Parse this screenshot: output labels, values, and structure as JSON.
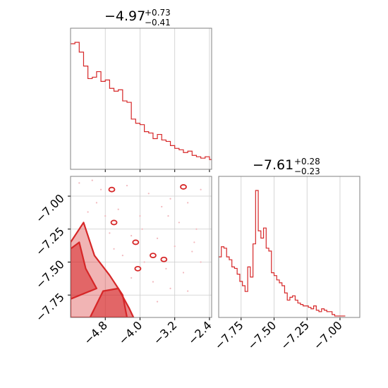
{
  "chart_data": [
    {
      "type": "histogram",
      "panel": "marginal-param-1",
      "title": {
        "value": "−4.97",
        "upper": "+0.73",
        "lower": "−0.41"
      },
      "xlim": [
        -5.6,
        -2.35
      ],
      "grid": true,
      "color": "#d62728",
      "bin_edges_start": -5.6,
      "bin_width": 0.1,
      "values": [
        90,
        91,
        84,
        74,
        65,
        66,
        70,
        63,
        64,
        58,
        56,
        57,
        49,
        48,
        36,
        33,
        32,
        27,
        26,
        22,
        25,
        21,
        20,
        17,
        15,
        14,
        12,
        13,
        10,
        9,
        8,
        9,
        7,
        6,
        7,
        5,
        5,
        6,
        4,
        5,
        3,
        4,
        3,
        3,
        2,
        3,
        2,
        2,
        1,
        2,
        1,
        2
      ]
    },
    {
      "type": "histogram",
      "panel": "marginal-param-2",
      "title": {
        "value": "−7.61",
        "upper": "+0.28",
        "lower": "−0.23"
      },
      "xlim": [
        -7.92,
        -6.85
      ],
      "xticks": [
        "−7.75",
        "−7.50",
        "−7.25",
        "−7.00"
      ],
      "grid": true,
      "color": "#d62728",
      "bin_edges_start": -7.92,
      "bin_width": 0.02,
      "values": [
        42,
        49,
        48,
        42,
        40,
        35,
        34,
        30,
        25,
        22,
        18,
        35,
        28,
        51,
        88,
        60,
        55,
        62,
        48,
        46,
        31,
        29,
        26,
        24,
        22,
        17,
        12,
        14,
        15,
        12,
        10,
        9,
        8,
        8,
        7,
        6,
        8,
        5,
        4,
        6,
        5,
        4,
        4,
        2,
        1,
        1,
        1,
        1
      ]
    },
    {
      "type": "scatter",
      "panel": "joint-2d",
      "xlim": [
        -5.6,
        -2.35
      ],
      "ylim": [
        -7.92,
        -6.85
      ],
      "xticks": [
        "−4.8",
        "−4.0",
        "−3.2",
        "−2.4"
      ],
      "yticks": [
        "−7.00",
        "−7.25",
        "−7.50",
        "−7.75"
      ],
      "grid": true,
      "color": "#d62728",
      "contours": [
        {
          "level": "outer",
          "points": [
            [
              -5.6,
              -7.35
            ],
            [
              -5.3,
              -7.2
            ],
            [
              -5.05,
              -7.45
            ],
            [
              -4.7,
              -7.6
            ],
            [
              -4.4,
              -7.75
            ],
            [
              -4.3,
              -7.92
            ],
            [
              -5.6,
              -7.92
            ]
          ]
        },
        {
          "level": "inner",
          "points": [
            [
              -5.6,
              -7.4
            ],
            [
              -5.4,
              -7.35
            ],
            [
              -5.25,
              -7.55
            ],
            [
              -5.0,
              -7.7
            ],
            [
              -5.6,
              -7.78
            ]
          ]
        },
        {
          "level": "inner",
          "points": [
            [
              -5.15,
              -7.92
            ],
            [
              -4.85,
              -7.72
            ],
            [
              -4.5,
              -7.7
            ],
            [
              -4.25,
              -7.85
            ],
            [
              -4.15,
              -7.92
            ]
          ]
        }
      ],
      "outlier_islands": [
        [
          -3.0,
          -6.93
        ],
        [
          -4.65,
          -6.95
        ],
        [
          -4.6,
          -7.2
        ],
        [
          -4.1,
          -7.35
        ],
        [
          -3.7,
          -7.45
        ],
        [
          -3.45,
          -7.48
        ],
        [
          -4.05,
          -7.55
        ]
      ],
      "points": [
        [
          -5.4,
          -6.9
        ],
        [
          -4.9,
          -6.95
        ],
        [
          -4.3,
          -6.92
        ],
        [
          -3.8,
          -6.98
        ],
        [
          -3.3,
          -7.02
        ],
        [
          -2.9,
          -7.05
        ],
        [
          -2.6,
          -6.95
        ],
        [
          -5.0,
          -7.05
        ],
        [
          -4.5,
          -7.1
        ],
        [
          -4.0,
          -7.15
        ],
        [
          -3.5,
          -7.08
        ],
        [
          -3.1,
          -7.2
        ],
        [
          -2.7,
          -7.25
        ],
        [
          -5.2,
          -7.12
        ],
        [
          -4.7,
          -7.28
        ],
        [
          -4.2,
          -7.3
        ],
        [
          -3.6,
          -7.32
        ],
        [
          -3.2,
          -7.38
        ],
        [
          -2.8,
          -7.42
        ],
        [
          -4.4,
          -7.45
        ],
        [
          -3.9,
          -7.5
        ],
        [
          -3.4,
          -7.55
        ],
        [
          -3.0,
          -7.58
        ],
        [
          -2.6,
          -7.5
        ],
        [
          -4.2,
          -7.62
        ],
        [
          -3.7,
          -7.65
        ],
        [
          -3.3,
          -7.7
        ],
        [
          -2.9,
          -7.72
        ],
        [
          -3.6,
          -7.8
        ],
        [
          -5.1,
          -6.88
        ],
        [
          -4.8,
          -7.15
        ],
        [
          -4.6,
          -7.4
        ],
        [
          -3.95,
          -7.25
        ],
        [
          -3.35,
          -7.15
        ],
        [
          -2.75,
          -7.35
        ]
      ]
    }
  ]
}
